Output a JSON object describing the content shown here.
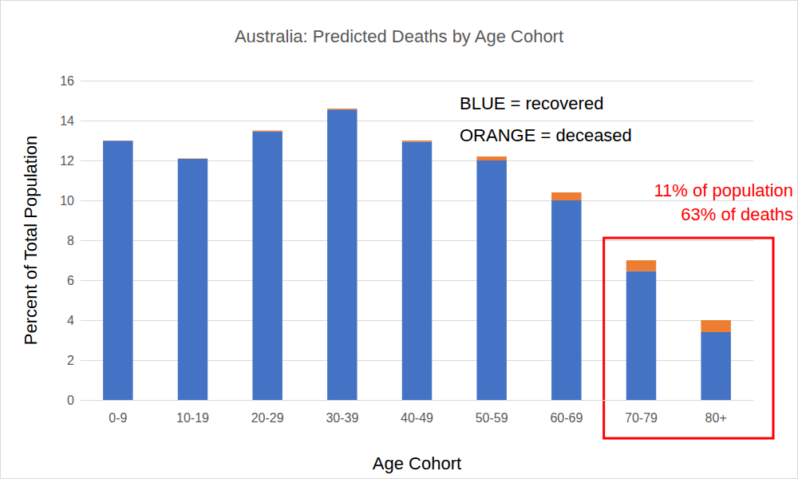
{
  "chart_data": {
    "type": "bar",
    "title": "Australia: Predicted Deaths by Age Cohort",
    "x_label": "Age Cohort",
    "y_label": "Percent of Total Population",
    "categories": [
      "0-9",
      "10-19",
      "20-29",
      "30-39",
      "40-49",
      "50-59",
      "60-69",
      "70-79",
      "80+"
    ],
    "series": [
      {
        "color": "#4472c4",
        "values": [
          12.99,
          12.08,
          13.45,
          14.55,
          12.94,
          12.0,
          10.0,
          6.45,
          3.4
        ]
      },
      {
        "color": "#ed7d31",
        "values": [
          0.01,
          0.02,
          0.05,
          0.05,
          0.06,
          0.2,
          0.4,
          0.55,
          0.6
        ]
      }
    ],
    "stacked": true,
    "ylim": [
      0,
      16
    ],
    "yticks": [
      0,
      2,
      4,
      6,
      8,
      10,
      12,
      14,
      16
    ],
    "grid": true,
    "annotations": [
      "BLUE = recovered",
      "ORANGE = deceased",
      "11% of population",
      "63% of deaths"
    ]
  }
}
